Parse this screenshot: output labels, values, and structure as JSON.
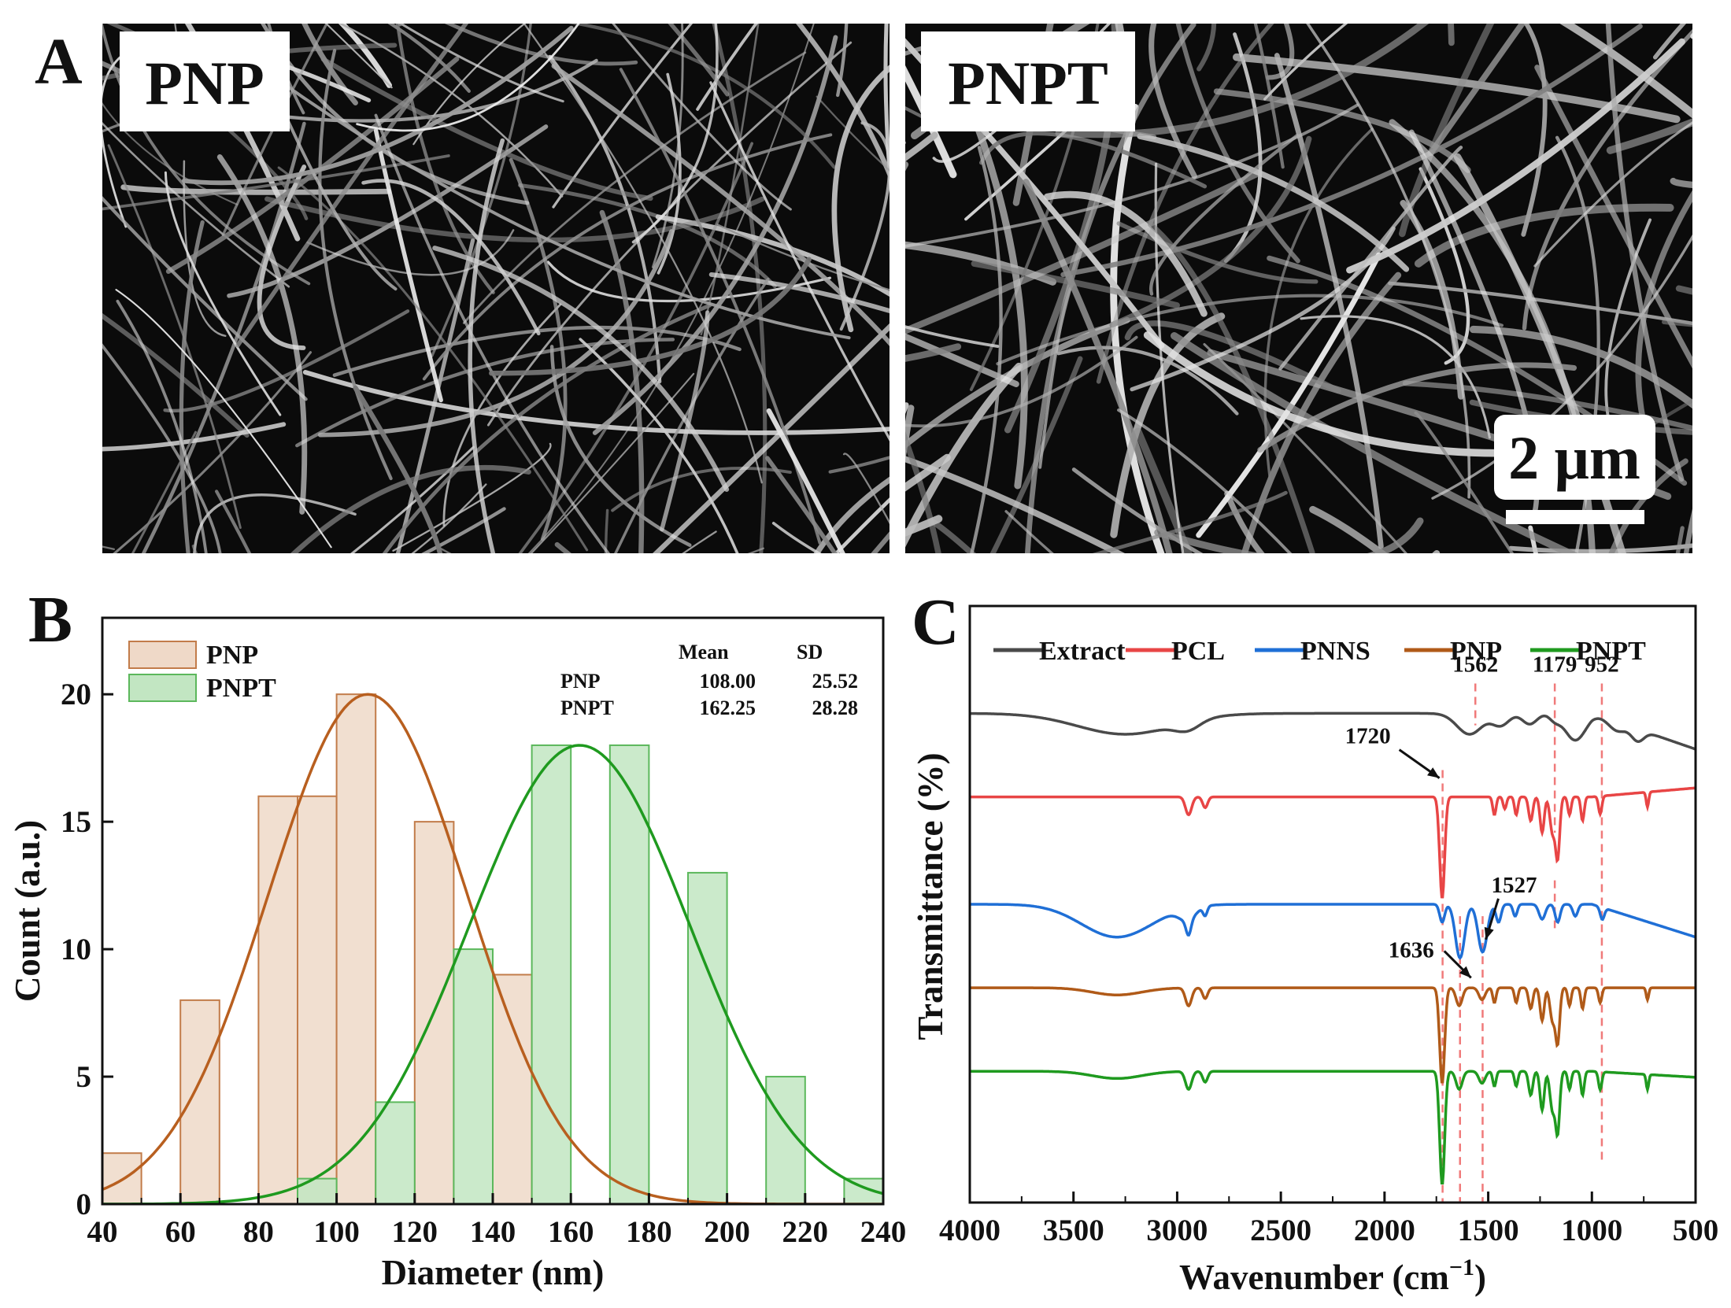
{
  "panels": {
    "a": {
      "letter": "A",
      "images": [
        {
          "label": "PNP",
          "seed": 11
        },
        {
          "label": "PNPT",
          "seed": 29
        }
      ],
      "scale_bar": "2 μm"
    },
    "b": {
      "letter": "B"
    },
    "c": {
      "letter": "C"
    }
  },
  "chart_data": [
    {
      "id": "b",
      "type": "bar",
      "title": "",
      "xlabel": "Diameter (nm)",
      "ylabel": "Count (a.u.)",
      "xlim": [
        40,
        240
      ],
      "ylim": [
        0,
        23
      ],
      "xticks": [
        40,
        60,
        80,
        100,
        120,
        140,
        160,
        180,
        200,
        220,
        240
      ],
      "yticks": [
        0,
        5,
        10,
        15,
        20
      ],
      "bin_width": 10,
      "series": [
        {
          "name": "PNP",
          "color": "#efd9c8",
          "edge": "#c27c4a",
          "fit_color": "#b85f1f",
          "bins": [
            40,
            60,
            80,
            90,
            100,
            120,
            140
          ],
          "values": [
            2,
            8,
            16,
            16,
            20,
            15,
            9
          ],
          "fit": {
            "mean": 108.0,
            "sd": 25.52,
            "peak": 20
          }
        },
        {
          "name": "PNPT",
          "color": "#c2e6c2",
          "edge": "#5cb85c",
          "fit_color": "#1f9a1f",
          "bins": [
            90,
            110,
            130,
            150,
            170,
            190,
            210,
            230
          ],
          "values": [
            1,
            4,
            10,
            18,
            18,
            13,
            5,
            1
          ],
          "fit": {
            "mean": 162.25,
            "sd": 28.28,
            "peak": 18
          }
        }
      ],
      "stats_table": {
        "headers": [
          "Mean",
          "SD"
        ],
        "rows": [
          {
            "name": "PNP",
            "mean": "108.00",
            "sd": "25.52"
          },
          {
            "name": "PNPT",
            "mean": "162.25",
            "sd": "28.28"
          }
        ]
      }
    },
    {
      "id": "c",
      "type": "line",
      "title": "",
      "xlabel": "Wavenumber (cm",
      "xlabel_sup": "−1",
      "xlabel_end": ")",
      "ylabel": "Transmittance (%)",
      "xlim": [
        4000,
        500
      ],
      "xticks": [
        4000,
        3500,
        3000,
        2500,
        2000,
        1500,
        1000,
        500
      ],
      "series": [
        {
          "name": "Extract",
          "color": "#4a4a4a",
          "baseline": 0.18,
          "broad": [
            [
              3250,
              0.035,
              230
            ],
            [
              2950,
              0.015,
              60
            ]
          ],
          "peaks": [
            [
              1590,
              0.035,
              60
            ],
            [
              1440,
              0.02,
              40
            ],
            [
              1300,
              0.018,
              35
            ],
            [
              1180,
              0.01,
              25
            ],
            [
              1080,
              0.045,
              50
            ],
            [
              880,
              0.015,
              40
            ],
            [
              780,
              0.02,
              30
            ]
          ],
          "tail": 0.06
        },
        {
          "name": "PCL",
          "color": "#e84545",
          "baseline": 0.32,
          "broad": [],
          "peaks": [
            [
              2945,
              0.03,
              15
            ],
            [
              2865,
              0.018,
              12
            ],
            [
              1722,
              0.17,
              12
            ],
            [
              1470,
              0.03,
              8
            ],
            [
              1420,
              0.02,
              8
            ],
            [
              1365,
              0.03,
              8
            ],
            [
              1295,
              0.04,
              10
            ],
            [
              1240,
              0.06,
              10
            ],
            [
              1190,
              0.06,
              12
            ],
            [
              1165,
              0.1,
              10
            ],
            [
              1108,
              0.03,
              8
            ],
            [
              1045,
              0.04,
              8
            ],
            [
              960,
              0.03,
              8
            ],
            [
              732,
              0.025,
              6
            ]
          ],
          "tail": -0.015
        },
        {
          "name": "PNNS",
          "color": "#1f6fd6",
          "baseline": 0.5,
          "broad": [
            [
              3290,
              0.055,
              170
            ],
            [
              2950,
              0.02,
              40
            ]
          ],
          "peaks": [
            [
              2945,
              0.025,
              12
            ],
            [
              2865,
              0.015,
              10
            ],
            [
              1722,
              0.03,
              12
            ],
            [
              1636,
              0.09,
              22
            ],
            [
              1527,
              0.08,
              22
            ],
            [
              1450,
              0.03,
              12
            ],
            [
              1370,
              0.02,
              10
            ],
            [
              1240,
              0.025,
              15
            ],
            [
              1165,
              0.03,
              12
            ],
            [
              1080,
              0.02,
              12
            ],
            [
              950,
              0.02,
              10
            ]
          ],
          "tail": 0.055
        },
        {
          "name": "PNP",
          "color": "#b05a18",
          "baseline": 0.64,
          "broad": [
            [
              3290,
              0.012,
              120
            ]
          ],
          "peaks": [
            [
              2945,
              0.03,
              15
            ],
            [
              2865,
              0.018,
              12
            ],
            [
              1722,
              0.16,
              12
            ],
            [
              1640,
              0.03,
              15
            ],
            [
              1530,
              0.02,
              15
            ],
            [
              1470,
              0.025,
              8
            ],
            [
              1365,
              0.025,
              8
            ],
            [
              1295,
              0.035,
              10
            ],
            [
              1240,
              0.055,
              10
            ],
            [
              1190,
              0.055,
              12
            ],
            [
              1165,
              0.09,
              10
            ],
            [
              1108,
              0.03,
              8
            ],
            [
              1045,
              0.035,
              8
            ],
            [
              960,
              0.025,
              8
            ],
            [
              732,
              0.02,
              6
            ]
          ],
          "tail": 0.0
        },
        {
          "name": "PNPT",
          "color": "#1f9a1f",
          "baseline": 0.78,
          "broad": [
            [
              3290,
              0.012,
              120
            ]
          ],
          "peaks": [
            [
              2945,
              0.03,
              15
            ],
            [
              2865,
              0.018,
              12
            ],
            [
              1722,
              0.19,
              12
            ],
            [
              1640,
              0.03,
              15
            ],
            [
              1530,
              0.02,
              15
            ],
            [
              1470,
              0.025,
              8
            ],
            [
              1365,
              0.025,
              8
            ],
            [
              1295,
              0.04,
              10
            ],
            [
              1240,
              0.065,
              10
            ],
            [
              1190,
              0.065,
              12
            ],
            [
              1165,
              0.1,
              10
            ],
            [
              1108,
              0.03,
              8
            ],
            [
              1045,
              0.04,
              8
            ],
            [
              960,
              0.03,
              8
            ],
            [
              732,
              0.025,
              6
            ]
          ],
          "tail": 0.01
        }
      ],
      "marker_lines": [
        {
          "x": 1720,
          "from": 0.275,
          "to": 1.0
        },
        {
          "x": 1636,
          "from": 0.52,
          "to": 1.0
        },
        {
          "x": 1562,
          "from": 0.13,
          "to": 0.2
        },
        {
          "x": 1527,
          "from": 0.52,
          "to": 1.0
        },
        {
          "x": 1179,
          "from": 0.13,
          "to": 0.38
        },
        {
          "x": 1179,
          "from": 0.46,
          "to": 0.54
        },
        {
          "x": 952,
          "from": 0.13,
          "to": 0.93
        }
      ],
      "annotations": [
        {
          "text": "1562",
          "x": 1562,
          "y": 0.11
        },
        {
          "text": "1179",
          "x": 1179,
          "y": 0.11
        },
        {
          "text": "952",
          "x": 952,
          "y": 0.11
        },
        {
          "text": "1720",
          "x": 1720,
          "y": 0.27,
          "arrow": true
        },
        {
          "text": "1527",
          "x": 1527,
          "y": 0.48,
          "arrow": true
        },
        {
          "text": "1636",
          "x": 1636,
          "y": 0.56,
          "arrow": true
        }
      ]
    }
  ]
}
